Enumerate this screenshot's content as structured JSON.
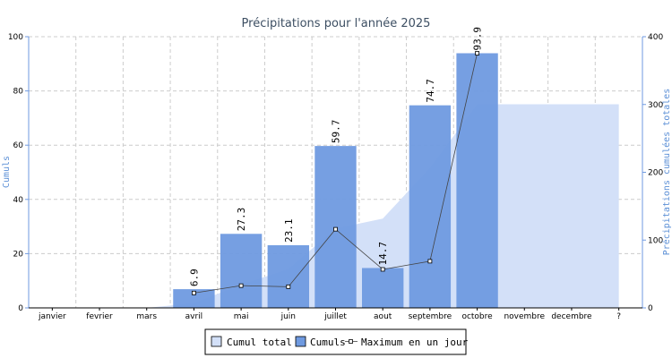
{
  "chart_data": {
    "type": "bar",
    "title": "Précipitations pour l'année 2025",
    "ylabel": "Cumuls",
    "y2label": "Précipitations cumulées totales",
    "categories": [
      "janvier",
      "fevrier",
      "mars",
      "avril",
      "mai",
      "juin",
      "juillet",
      "aout",
      "septembre",
      "octobre",
      "novembre",
      "decembre",
      "?"
    ],
    "ylim": [
      0,
      100
    ],
    "y2lim": [
      0,
      400
    ],
    "yticks": [
      0,
      20,
      40,
      60,
      80,
      100
    ],
    "y2ticks": [
      0,
      100,
      200,
      300,
      400
    ],
    "grid": true,
    "legend_position": "bottom-center",
    "series": [
      {
        "name": "Cumul total",
        "type": "area",
        "axis": "right",
        "color": "#d3e0f8",
        "values": [
          0,
          0,
          0,
          6.9,
          34.2,
          57.3,
          117,
          131.7,
          206.4,
          300.3,
          300.3,
          300.3,
          300.3
        ]
      },
      {
        "name": "Cumuls",
        "type": "bar",
        "axis": "left",
        "color": "#6f9ae0",
        "values": [
          0,
          0,
          0,
          6.9,
          27.3,
          23.1,
          59.7,
          14.7,
          74.7,
          93.9,
          null,
          null,
          null
        ],
        "labels": [
          "",
          "",
          "",
          "6.9",
          "27.3",
          "23.1",
          "59.7",
          "14.7",
          "74.7",
          "93.9",
          "",
          "",
          ""
        ]
      },
      {
        "name": "Maximum en un jour",
        "type": "line",
        "axis": "left",
        "color": "#444444",
        "values": [
          null,
          null,
          null,
          5.5,
          8.2,
          7.8,
          29,
          14.2,
          17.2,
          93.9,
          null,
          null,
          null
        ]
      }
    ]
  }
}
